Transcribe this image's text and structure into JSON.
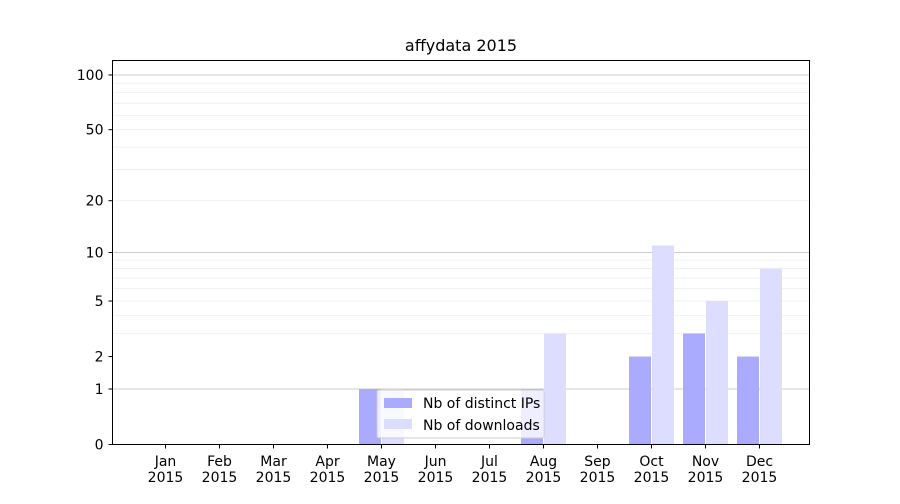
{
  "chart_data": {
    "type": "bar",
    "title": "affydata 2015",
    "xlabel": "",
    "ylabel": "",
    "yscale": "log1p",
    "ylim": [
      0,
      120
    ],
    "y_ticks": [
      0,
      1,
      2,
      5,
      10,
      20,
      50,
      100
    ],
    "y_tick_labels": [
      "0",
      "1",
      "2",
      "5",
      "10",
      "20",
      "50",
      "100"
    ],
    "categories": [
      "Jan",
      "Feb",
      "Mar",
      "Apr",
      "May",
      "Jun",
      "Jul",
      "Aug",
      "Sep",
      "Oct",
      "Nov",
      "Dec"
    ],
    "category_years": [
      "2015",
      "2015",
      "2015",
      "2015",
      "2015",
      "2015",
      "2015",
      "2015",
      "2015",
      "2015",
      "2015",
      "2015"
    ],
    "series": [
      {
        "name": "Nb of distinct IPs",
        "color": "#aaaaff",
        "values": [
          0,
          0,
          0,
          0,
          1,
          0,
          0,
          1,
          0,
          2,
          3,
          2
        ]
      },
      {
        "name": "Nb of downloads",
        "color": "#ddddff",
        "values": [
          0,
          0,
          0,
          0,
          1,
          0,
          0,
          3,
          0,
          11,
          5,
          8
        ]
      }
    ],
    "grid": true,
    "legend_position": "lower-center"
  }
}
